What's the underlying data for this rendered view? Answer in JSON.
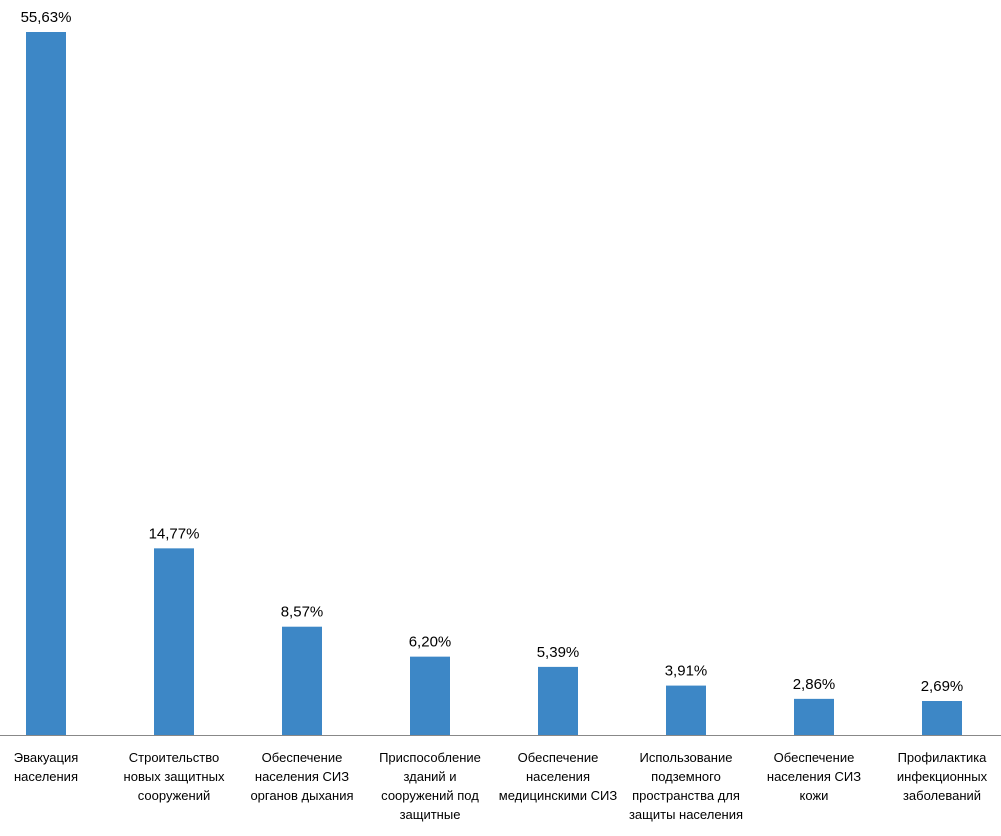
{
  "chart_data": {
    "type": "bar",
    "categories": [
      "Эвакуация населения",
      "Строительство новых защитных сооружений",
      "Обеспечение населения СИЗ органов дыхания",
      "Приспособление зданий и сооружений под защитные",
      "Обеспечение населения медицинскими СИЗ",
      "Использование подземного пространства для защиты населения",
      "Обеспечение населения СИЗ кожи",
      "Профилактика инфекционных заболеваний"
    ],
    "values": [
      55.63,
      14.77,
      8.57,
      6.2,
      5.39,
      3.91,
      2.86,
      2.69
    ],
    "value_labels": [
      "55,63%",
      "14,77%",
      "8,57%",
      "6,20%",
      "5,39%",
      "3,91%",
      "2,86%",
      "2,69%"
    ],
    "color": "#3d87c6"
  }
}
